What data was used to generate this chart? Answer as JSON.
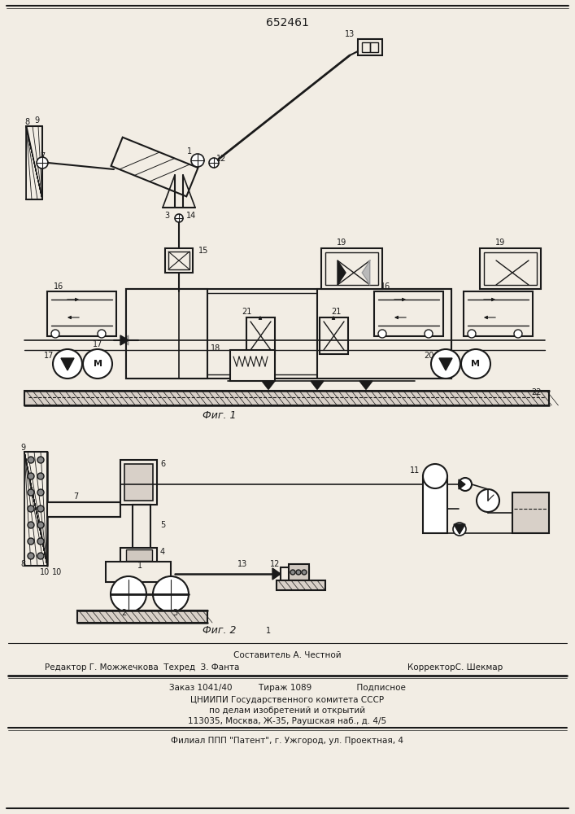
{
  "patent_number": "652461",
  "bg": "#f2ede4",
  "lc": "#1a1a1a",
  "fig1_label": "Фиг. 1",
  "fig2_label": "Фиг. 2",
  "f1": "Составитель А. Честной",
  "f2l": "Редактор Г. Можжечкова  Техред  З. Фанта",
  "f2r": "КорректорС. Шекмар",
  "f3": "Заказ 1041/40          Тираж 1089                 Подписное",
  "f4": "ЦНИИПИ Государственного комитета СССР",
  "f5": "по делам изобретений и открытий",
  "f6": "113035, Москва, Ж-35, Раушская наб., д. 4/5",
  "f7": "Филиал ППП \"Патент\", г. Ужгород, ул. Проектная, 4"
}
